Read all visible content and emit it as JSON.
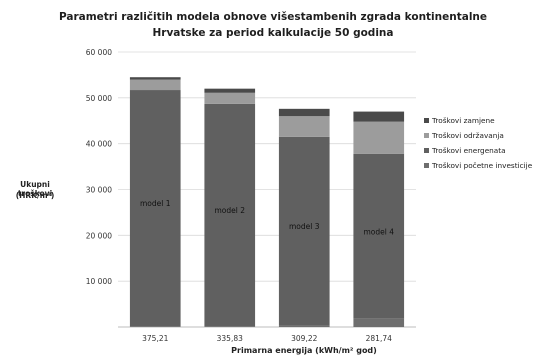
{
  "chart_data": {
    "type": "bar",
    "stacked": true,
    "title": "Parametri različitih modela obnove višestambenih zgrada kontinentalne",
    "subtitle": "Hrvatske za period kalkulacije 50 godina",
    "ylabel_line1": "Ukupni troškovi",
    "ylabel_line2": "(HRK/m²)",
    "xlabel": "Primarna energija (kWh/m² god)",
    "categories": [
      "375,21",
      "335,83",
      "309,22",
      "281,74"
    ],
    "bar_labels": [
      "model 1",
      "model 2",
      "model 3",
      "model 4"
    ],
    "ylim": [
      0,
      60000
    ],
    "yticks": [
      0,
      10000,
      20000,
      30000,
      40000,
      50000,
      60000
    ],
    "ytick_labels": [
      "",
      "10 000",
      "20 000",
      "30 000",
      "40 000",
      "50 000",
      "60 000"
    ],
    "grid": true,
    "legend_position": "right",
    "series": [
      {
        "name": "Troškovi početne investicije",
        "color": "#6e6e6e",
        "values": [
          200,
          200,
          300,
          1800
        ]
      },
      {
        "name": "Troškovi energenata",
        "color": "#606060",
        "values": [
          51500,
          48500,
          41200,
          36000
        ]
      },
      {
        "name": "Troškovi održavanja",
        "color": "#9c9c9c",
        "values": [
          2300,
          2400,
          4500,
          7000
        ]
      },
      {
        "name": "Troškovi zamjene",
        "color": "#4a4a4a",
        "values": [
          500,
          900,
          1600,
          2200
        ]
      }
    ],
    "legend_order": [
      "Troškovi zamjene",
      "Troškovi održavanja",
      "Troškovi energenata",
      "Troškovi početne investicije"
    ]
  }
}
